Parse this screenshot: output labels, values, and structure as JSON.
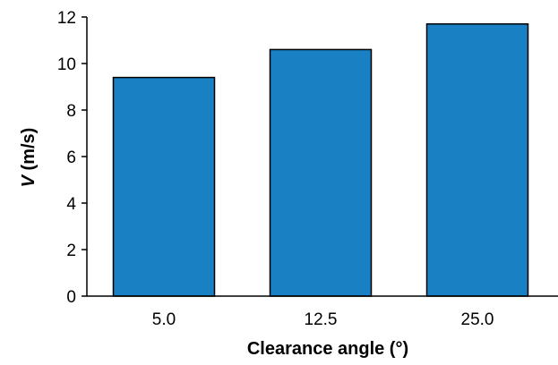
{
  "chart_data": {
    "type": "bar",
    "categories": [
      "5.0",
      "12.5",
      "25.0"
    ],
    "values": [
      9.4,
      10.6,
      11.7
    ],
    "title": "",
    "xlabel": "Clearance angle (°)",
    "ylabel": {
      "variable": "V",
      "unit": " (m/s)"
    },
    "ylim": [
      0,
      12
    ],
    "yticks": [
      "0",
      "2",
      "4",
      "6",
      "8",
      "10",
      "12"
    ],
    "grid": false,
    "legend": "none",
    "bar_color": "#1a80c4",
    "bar_edge_color": "#000000"
  }
}
